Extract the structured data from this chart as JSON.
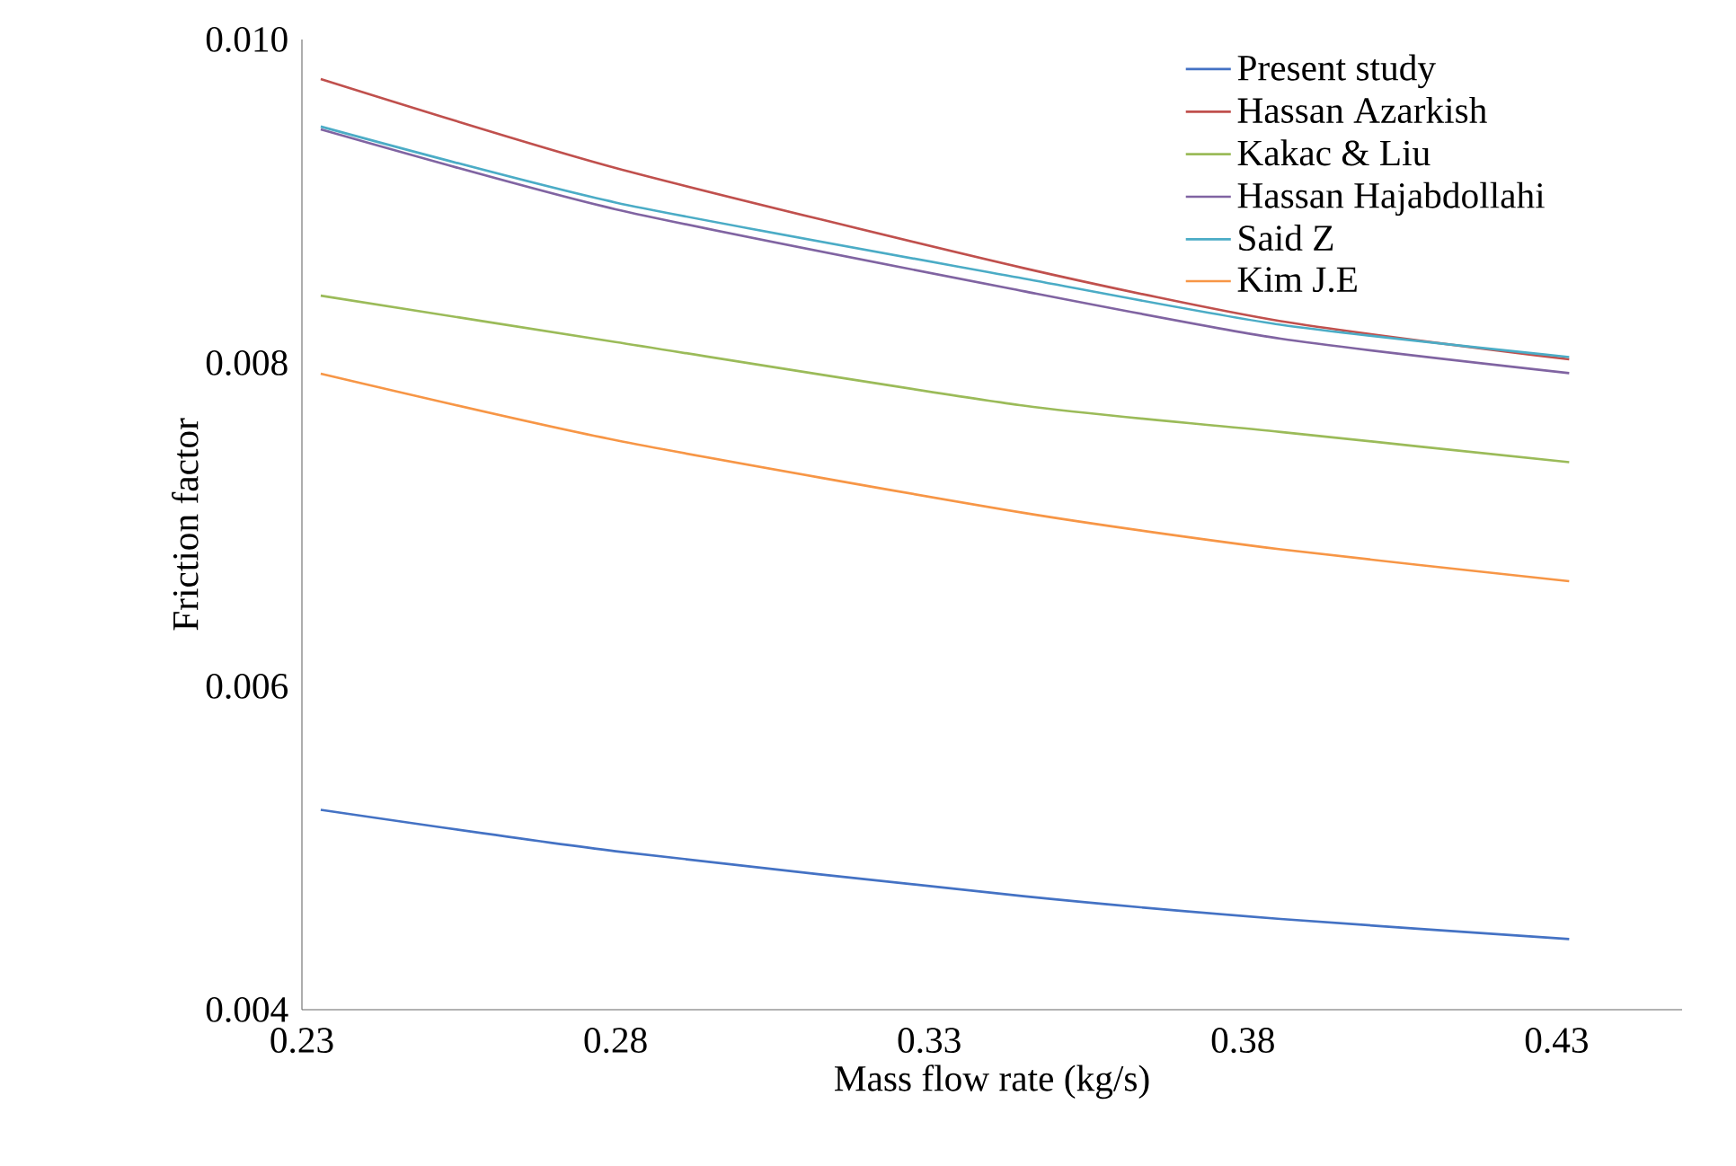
{
  "chart_data": {
    "type": "line",
    "xlabel": "Mass flow rate (kg/s)",
    "ylabel": "Friction factor",
    "x": [
      0.233,
      0.28,
      0.345,
      0.386,
      0.432
    ],
    "series": [
      {
        "name": "Present study",
        "color": "#4472c4",
        "values": [
          0.005236,
          0.00498,
          0.004702,
          0.004561,
          0.004437
        ]
      },
      {
        "name": "Hassan Azarkish",
        "color": "#c0504d",
        "values": [
          0.009756,
          0.009206,
          0.008587,
          0.008258,
          0.008022
        ]
      },
      {
        "name": "Kakac & Liu",
        "color": "#9bbb59",
        "values": [
          0.008416,
          0.008129,
          0.007736,
          0.007573,
          0.007386
        ]
      },
      {
        "name": "Hassan Hajabdollahi",
        "color": "#8064a2",
        "values": [
          0.009444,
          0.00895,
          0.008444,
          0.00815,
          0.007937
        ]
      },
      {
        "name": "Said Z",
        "color": "#4bacc6",
        "values": [
          0.009462,
          0.008992,
          0.008522,
          0.008236,
          0.008036
        ]
      },
      {
        "name": "Kim J.E",
        "color": "#f79646",
        "values": [
          0.007933,
          0.007522,
          0.007073,
          0.006847,
          0.00665
        ]
      }
    ],
    "xlim": [
      0.23,
      0.45
    ],
    "ylim": [
      0.004,
      0.01
    ],
    "xticks": [
      0.23,
      0.28,
      0.33,
      0.38,
      0.43
    ],
    "yticks": [
      0.004,
      0.006,
      0.008,
      {
        "value": 0.01,
        "label": "0.010"
      }
    ],
    "grid": false,
    "legend": "top right",
    "marker": "none",
    "line_style": "solid"
  }
}
